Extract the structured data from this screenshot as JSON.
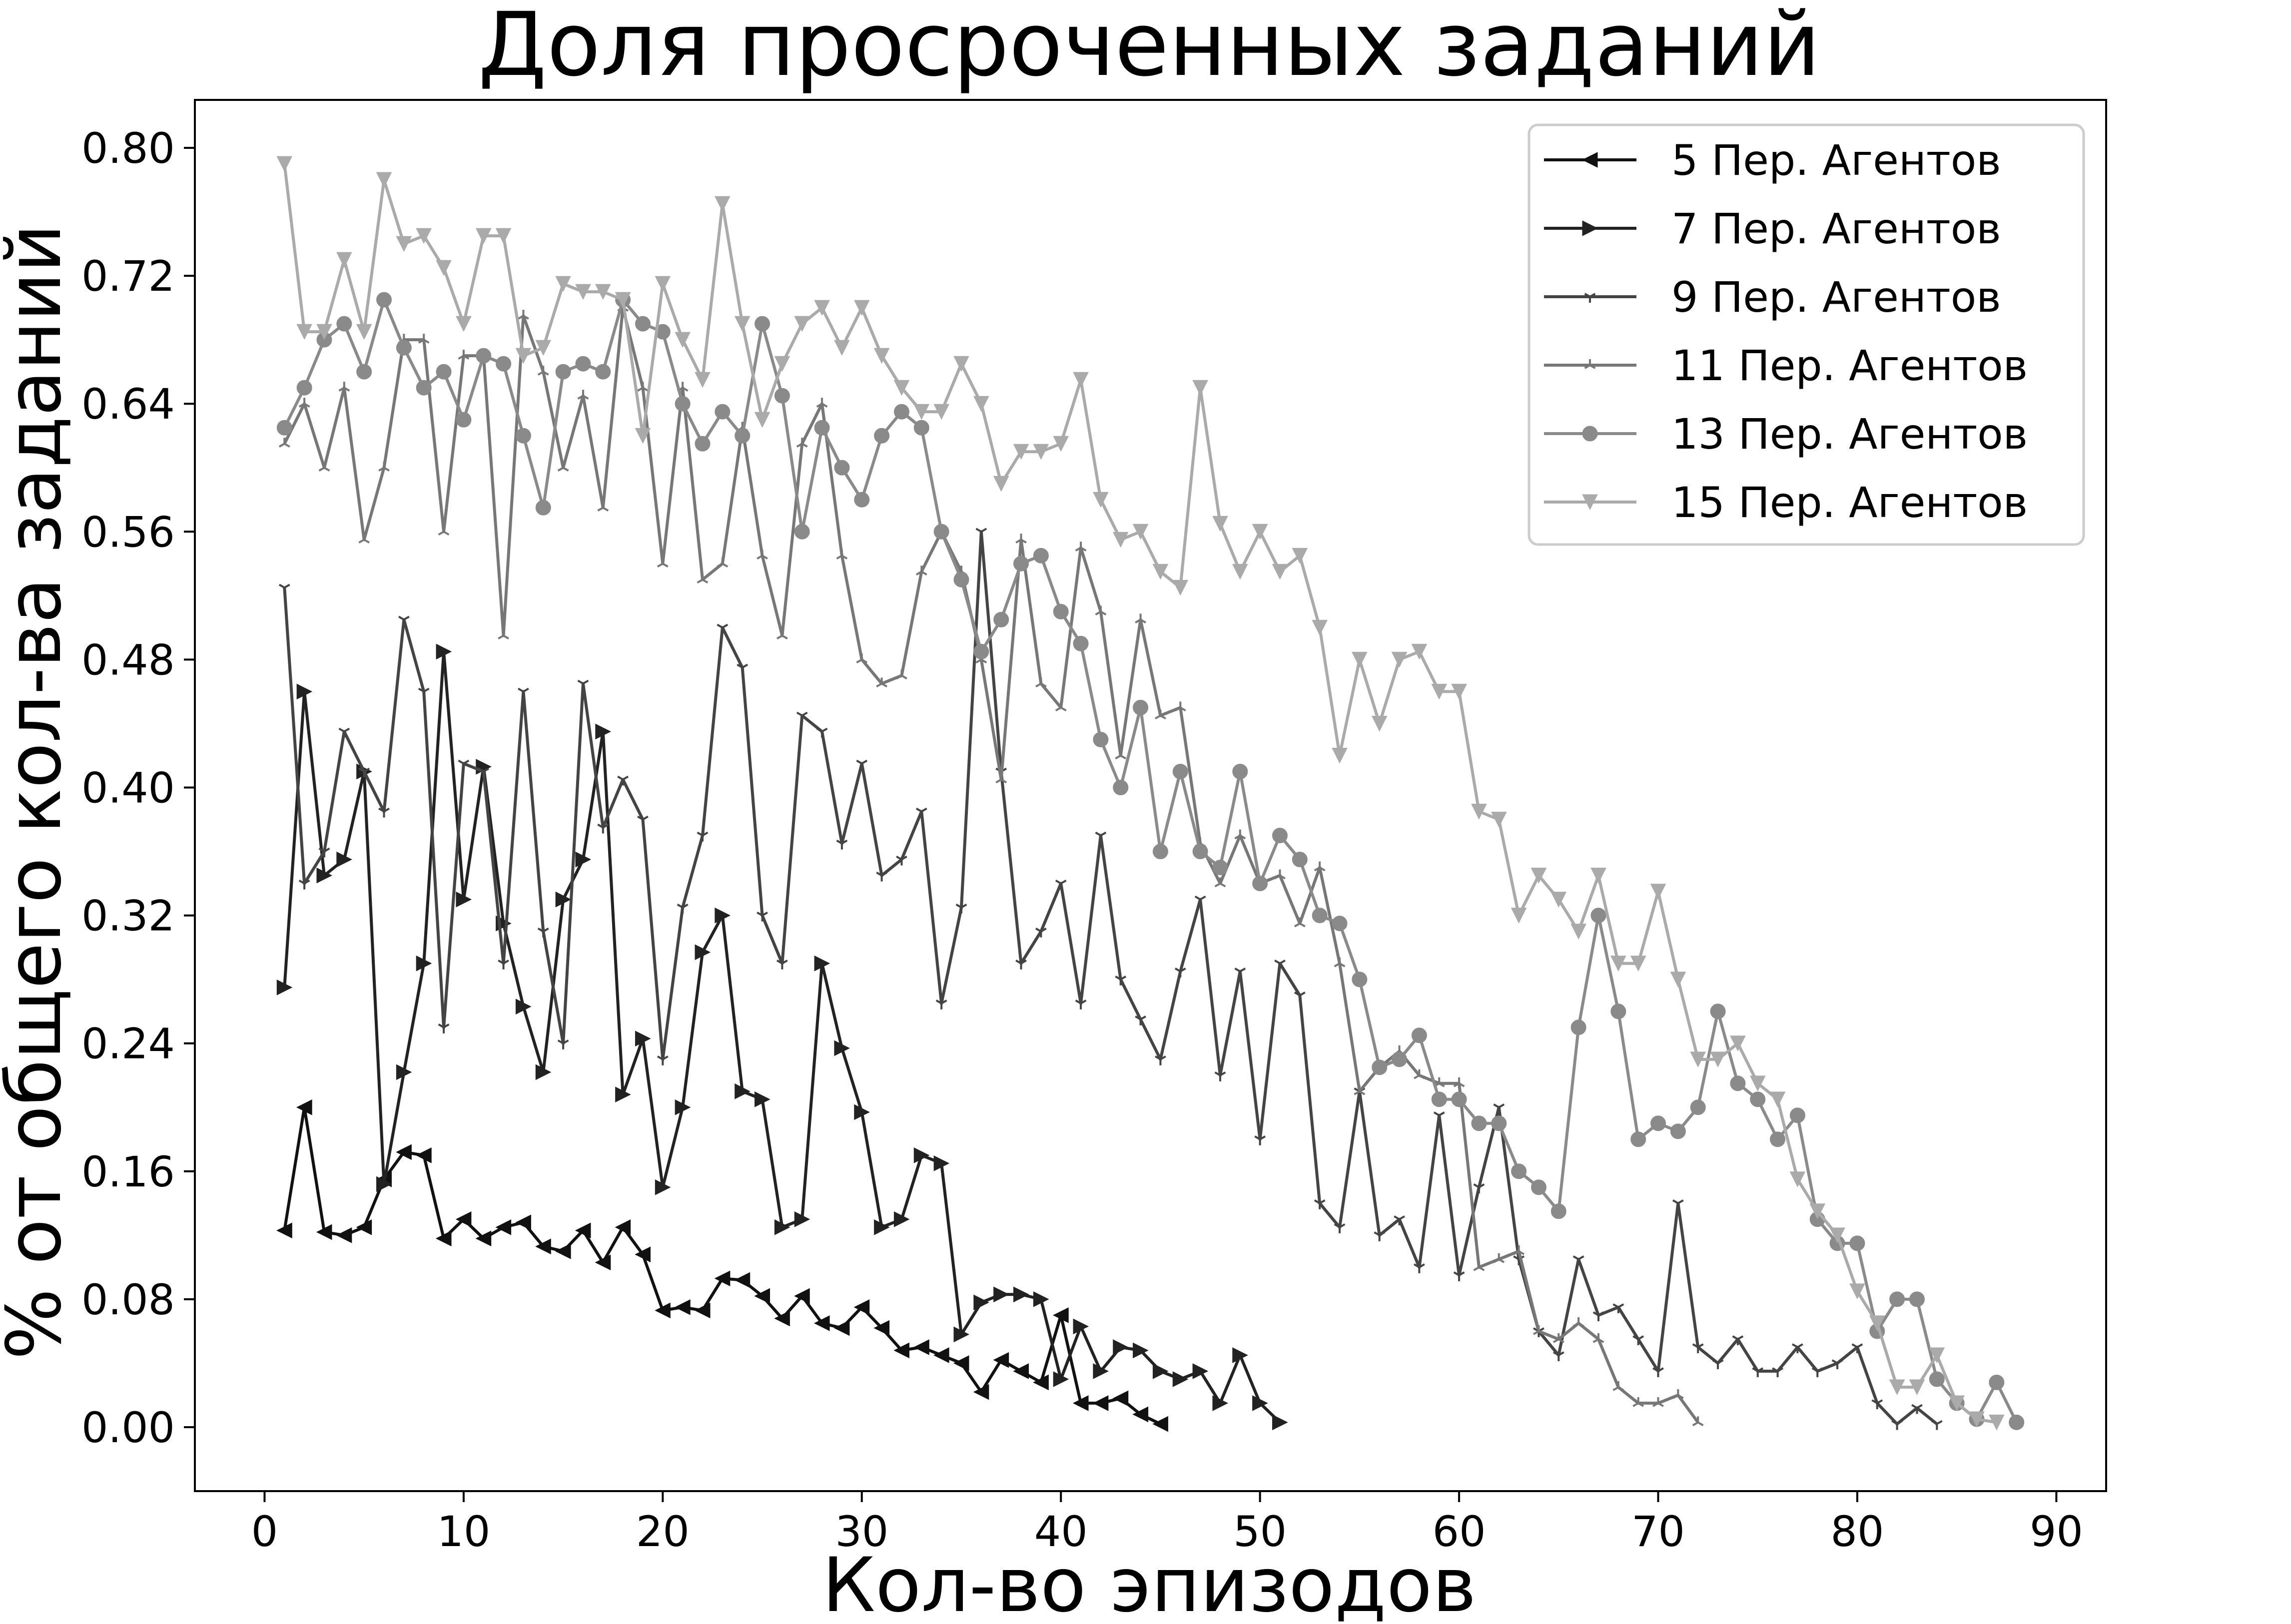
{
  "chart_data": {
    "type": "line",
    "title": "Доля просроченных заданий",
    "xlabel": "Кол-во эпизодов",
    "ylabel": "% от общего кол-ва заданий",
    "xlim": [
      -3.5,
      92.5
    ],
    "ylim": [
      -0.04,
      0.83
    ],
    "xticks": [
      0,
      10,
      20,
      30,
      40,
      50,
      60,
      70,
      80,
      90
    ],
    "yticks": [
      0.0,
      0.08,
      0.16,
      0.24,
      0.32,
      0.4,
      0.48,
      0.56,
      0.64,
      0.72,
      0.8
    ],
    "ytick_labels": [
      "0.00",
      "0.08",
      "0.16",
      "0.24",
      "0.32",
      "0.40",
      "0.48",
      "0.56",
      "0.64",
      "0.72",
      "0.80"
    ],
    "grid": false,
    "legend_position": "top-right",
    "series": [
      {
        "name": "5 Пер. Агентов",
        "color": "#111111",
        "marker": "triangle-left",
        "x_start": 1,
        "values": [
          0.123,
          0.2,
          0.122,
          0.12,
          0.125,
          0.155,
          0.172,
          0.17,
          0.118,
          0.13,
          0.118,
          0.125,
          0.128,
          0.113,
          0.11,
          0.123,
          0.103,
          0.125,
          0.108,
          0.073,
          0.075,
          0.073,
          0.093,
          0.092,
          0.082,
          0.068,
          0.082,
          0.065,
          0.062,
          0.075,
          0.062,
          0.048,
          0.05,
          0.045,
          0.04,
          0.022,
          0.042,
          0.035,
          0.028,
          0.07,
          0.015,
          0.015,
          0.018,
          0.008,
          0.002
        ]
      },
      {
        "name": "7 Пер. Агентов",
        "color": "#222222",
        "marker": "triangle-right",
        "x_start": 1,
        "values": [
          0.275,
          0.46,
          0.345,
          0.355,
          0.41,
          0.152,
          0.222,
          0.29,
          0.485,
          0.33,
          0.413,
          0.315,
          0.263,
          0.222,
          0.33,
          0.355,
          0.435,
          0.208,
          0.243,
          0.15,
          0.2,
          0.297,
          0.32,
          0.21,
          0.205,
          0.125,
          0.13,
          0.29,
          0.237,
          0.197,
          0.125,
          0.13,
          0.17,
          0.165,
          0.058,
          0.078,
          0.083,
          0.083,
          0.08,
          0.03,
          0.063,
          0.035,
          0.05,
          0.048,
          0.035,
          0.03,
          0.035,
          0.015,
          0.045,
          0.015,
          0.003
        ]
      },
      {
        "name": "9 Пер. Агентов",
        "color": "#444444",
        "marker": "tri-down",
        "x_start": 1,
        "values": [
          0.525,
          0.34,
          0.36,
          0.435,
          0.41,
          0.385,
          0.505,
          0.46,
          0.25,
          0.415,
          0.41,
          0.29,
          0.46,
          0.31,
          0.24,
          0.465,
          0.375,
          0.405,
          0.38,
          0.23,
          0.325,
          0.37,
          0.5,
          0.475,
          0.32,
          0.29,
          0.445,
          0.435,
          0.365,
          0.415,
          0.345,
          0.355,
          0.385,
          0.265,
          0.325,
          0.56,
          0.41,
          0.29,
          0.31,
          0.34,
          0.265,
          0.37,
          0.28,
          0.255,
          0.23,
          0.285,
          0.33,
          0.22,
          0.285,
          0.18,
          0.29,
          0.27,
          0.14,
          0.125,
          0.21,
          0.12,
          0.13,
          0.1,
          0.195,
          0.095,
          0.15,
          0.2,
          0.105,
          0.06,
          0.045,
          0.105,
          0.07,
          0.075,
          0.055,
          0.035,
          0.14,
          0.05,
          0.04,
          0.055,
          0.035,
          0.035,
          0.05,
          0.035,
          0.04,
          0.05,
          0.015,
          0.002,
          0.012,
          0.002
        ]
      },
      {
        "name": "11 Пер. Агентов",
        "color": "#777777",
        "marker": "tri-up",
        "x_start": 1,
        "values": [
          0.615,
          0.64,
          0.6,
          0.65,
          0.555,
          0.6,
          0.68,
          0.68,
          0.56,
          0.67,
          0.67,
          0.495,
          0.695,
          0.66,
          0.6,
          0.645,
          0.575,
          0.7,
          0.65,
          0.54,
          0.65,
          0.53,
          0.54,
          0.625,
          0.545,
          0.495,
          0.615,
          0.64,
          0.545,
          0.48,
          0.465,
          0.47,
          0.535,
          0.56,
          0.535,
          0.48,
          0.405,
          0.555,
          0.465,
          0.45,
          0.55,
          0.51,
          0.42,
          0.505,
          0.445,
          0.45,
          0.365,
          0.34,
          0.37,
          0.34,
          0.345,
          0.315,
          0.35,
          0.29,
          0.21,
          0.225,
          0.235,
          0.22,
          0.215,
          0.215,
          0.1,
          0.105,
          0.11,
          0.06,
          0.055,
          0.065,
          0.055,
          0.025,
          0.015,
          0.015,
          0.02,
          0.003
        ]
      },
      {
        "name": "13 Пер. Агентов",
        "color": "#8a8a8a",
        "marker": "circle",
        "x_start": 1,
        "values": [
          0.625,
          0.65,
          0.68,
          0.69,
          0.66,
          0.705,
          0.675,
          0.65,
          0.66,
          0.63,
          0.67,
          0.665,
          0.62,
          0.575,
          0.66,
          0.665,
          0.66,
          0.705,
          0.69,
          0.685,
          0.64,
          0.615,
          0.635,
          0.62,
          0.69,
          0.645,
          0.56,
          0.625,
          0.6,
          0.58,
          0.62,
          0.635,
          0.625,
          0.56,
          0.53,
          0.485,
          0.505,
          0.54,
          0.545,
          0.51,
          0.49,
          0.43,
          0.4,
          0.45,
          0.36,
          0.41,
          0.36,
          0.35,
          0.41,
          0.34,
          0.37,
          0.355,
          0.32,
          0.315,
          0.28,
          0.225,
          0.23,
          0.245,
          0.205,
          0.205,
          0.19,
          0.19,
          0.16,
          0.15,
          0.135,
          0.25,
          0.32,
          0.26,
          0.18,
          0.19,
          0.185,
          0.2,
          0.26,
          0.215,
          0.205,
          0.18,
          0.195,
          0.13,
          0.115,
          0.115,
          0.06,
          0.08,
          0.08,
          0.03,
          0.015,
          0.005,
          0.028,
          0.003
        ]
      },
      {
        "name": "15 Пер. Агентов",
        "color": "#aaaaaa",
        "marker": "triangle-down",
        "x_start": 1,
        "values": [
          0.79,
          0.685,
          0.685,
          0.73,
          0.685,
          0.78,
          0.74,
          0.745,
          0.725,
          0.69,
          0.745,
          0.745,
          0.67,
          0.675,
          0.715,
          0.71,
          0.71,
          0.705,
          0.62,
          0.715,
          0.68,
          0.655,
          0.765,
          0.69,
          0.63,
          0.665,
          0.69,
          0.7,
          0.675,
          0.7,
          0.67,
          0.65,
          0.635,
          0.635,
          0.665,
          0.64,
          0.59,
          0.61,
          0.61,
          0.615,
          0.655,
          0.58,
          0.555,
          0.56,
          0.535,
          0.525,
          0.65,
          0.565,
          0.535,
          0.56,
          0.535,
          0.545,
          0.5,
          0.42,
          0.48,
          0.44,
          0.48,
          0.485,
          0.46,
          0.46,
          0.385,
          0.38,
          0.32,
          0.345,
          0.33,
          0.31,
          0.345,
          0.29,
          0.29,
          0.335,
          0.28,
          0.23,
          0.23,
          0.24,
          0.215,
          0.205,
          0.155,
          0.135,
          0.12,
          0.085,
          0.065,
          0.025,
          0.025,
          0.045,
          0.015,
          0.005,
          0.003
        ]
      }
    ]
  }
}
